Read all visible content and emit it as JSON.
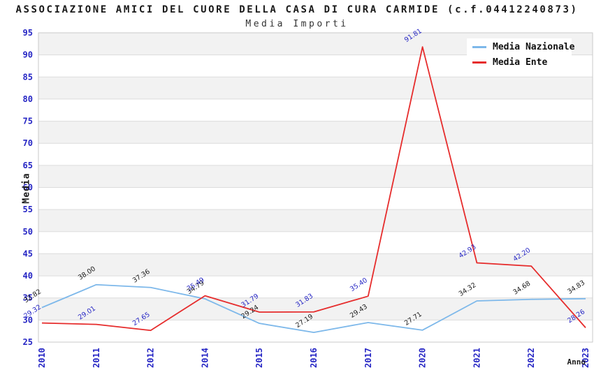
{
  "header": {
    "title": "ASSOCIAZIONE AMICI DEL CUORE DELLA CASA DI CURA CARMIDE (c.f.04412240873)",
    "subtitle": "Media Importi"
  },
  "chart_data": {
    "type": "line",
    "categories": [
      "2010",
      "2011",
      "2012",
      "2014",
      "2015",
      "2016",
      "2017",
      "2020",
      "2021",
      "2022",
      "2023"
    ],
    "series": [
      {
        "name": "Media Nazionale",
        "color": "#7db8ea",
        "label_color": "#1a1a1a",
        "values": [
          32.82,
          38.0,
          37.36,
          34.79,
          29.24,
          27.19,
          29.43,
          27.71,
          34.32,
          34.68,
          34.83
        ]
      },
      {
        "name": "Media Ente",
        "color": "#e62c2c",
        "label_color": "#2525c4",
        "values": [
          29.32,
          29.01,
          27.65,
          35.49,
          31.79,
          31.83,
          35.4,
          91.81,
          42.93,
          42.2,
          28.26
        ]
      }
    ],
    "xlabel": "Anno",
    "ylabel": "Media",
    "ylim": [
      25,
      95
    ],
    "ytick_step": 5,
    "grid": "horizontal-bands",
    "legend_position": "top-right",
    "value_label_format": "2-decimals"
  },
  "colors": {
    "axis_text": "#2525c4",
    "band_fill": "#f2f2f2",
    "gridline": "#dcdcdc",
    "plot_border": "#c9c9c9",
    "background": "#ffffff"
  }
}
